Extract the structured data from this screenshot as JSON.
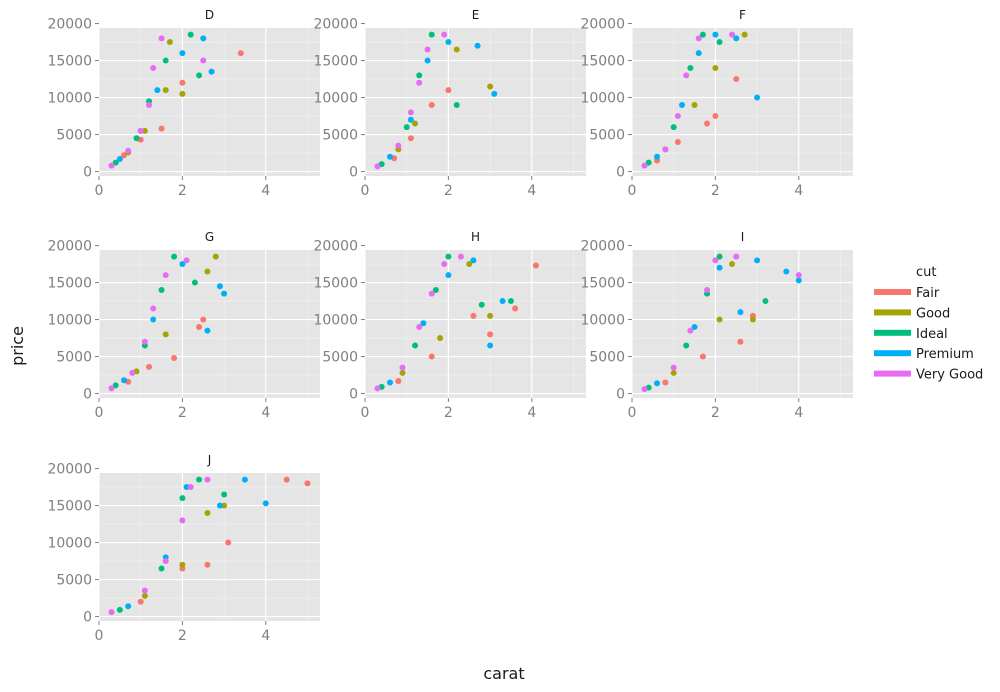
{
  "chart_data": {
    "type": "scatter",
    "title": "",
    "xlabel": "carat",
    "ylabel": "price",
    "xlim": [
      0,
      5.3
    ],
    "ylim": [
      -600,
      19400
    ],
    "xticks": [
      0,
      2,
      4
    ],
    "yticks": [
      0,
      5000,
      10000,
      15000,
      20000
    ],
    "grid": true,
    "legend": {
      "title": "cut",
      "placement": "right",
      "entries": [
        {
          "name": "Fair",
          "color": "#F8766D"
        },
        {
          "name": "Good",
          "color": "#A3A500"
        },
        {
          "name": "Ideal",
          "color": "#00BF7D"
        },
        {
          "name": "Premium",
          "color": "#00B0F6"
        },
        {
          "name": "Very Good",
          "color": "#E76BF3"
        }
      ]
    },
    "facets": [
      {
        "label": "D",
        "series": [
          {
            "name": "Fair",
            "points": [
              [
                0.6,
                2200
              ],
              [
                1.0,
                4300
              ],
              [
                1.5,
                5800
              ],
              [
                2.0,
                12000
              ],
              [
                3.4,
                16000
              ]
            ]
          },
          {
            "name": "Good",
            "points": [
              [
                0.7,
                2600
              ],
              [
                1.1,
                5500
              ],
              [
                1.6,
                11000
              ],
              [
                2.0,
                10500
              ],
              [
                1.7,
                17500
              ]
            ]
          },
          {
            "name": "Ideal",
            "points": [
              [
                0.4,
                1200
              ],
              [
                0.9,
                4500
              ],
              [
                1.2,
                9500
              ],
              [
                1.6,
                15000
              ],
              [
                2.4,
                13000
              ],
              [
                2.2,
                18500
              ]
            ]
          },
          {
            "name": "Premium",
            "points": [
              [
                0.5,
                1700
              ],
              [
                1.0,
                5500
              ],
              [
                1.4,
                11000
              ],
              [
                2.0,
                16000
              ],
              [
                2.5,
                18000
              ],
              [
                2.7,
                13500
              ]
            ]
          },
          {
            "name": "Very Good",
            "points": [
              [
                0.3,
                800
              ],
              [
                0.7,
                2800
              ],
              [
                1.0,
                5500
              ],
              [
                1.2,
                9000
              ],
              [
                1.3,
                14000
              ],
              [
                1.5,
                18000
              ],
              [
                2.5,
                15000
              ]
            ]
          }
        ]
      },
      {
        "label": "E",
        "series": [
          {
            "name": "Fair",
            "points": [
              [
                0.7,
                1800
              ],
              [
                1.1,
                4500
              ],
              [
                1.6,
                9000
              ],
              [
                2.0,
                11000
              ]
            ]
          },
          {
            "name": "Good",
            "points": [
              [
                0.8,
                3000
              ],
              [
                1.2,
                6500
              ],
              [
                3.0,
                11500
              ],
              [
                2.2,
                16500
              ]
            ]
          },
          {
            "name": "Ideal",
            "points": [
              [
                0.4,
                1000
              ],
              [
                1.0,
                6000
              ],
              [
                1.3,
                13000
              ],
              [
                1.6,
                18500
              ],
              [
                2.2,
                9000
              ]
            ]
          },
          {
            "name": "Premium",
            "points": [
              [
                0.6,
                2000
              ],
              [
                1.1,
                7000
              ],
              [
                1.5,
                15000
              ],
              [
                2.0,
                17500
              ],
              [
                2.7,
                17000
              ],
              [
                3.1,
                10500
              ]
            ]
          },
          {
            "name": "Very Good",
            "points": [
              [
                0.3,
                700
              ],
              [
                0.8,
                3500
              ],
              [
                1.1,
                8000
              ],
              [
                1.3,
                12000
              ],
              [
                1.5,
                16500
              ],
              [
                1.9,
                18500
              ]
            ]
          }
        ]
      },
      {
        "label": "F",
        "series": [
          {
            "name": "Fair",
            "points": [
              [
                0.6,
                1500
              ],
              [
                1.1,
                4000
              ],
              [
                1.8,
                6500
              ],
              [
                2.0,
                7500
              ],
              [
                2.5,
                12500
              ]
            ]
          },
          {
            "name": "Good",
            "points": [
              [
                0.8,
                3000
              ],
              [
                1.5,
                9000
              ],
              [
                2.0,
                14000
              ],
              [
                2.7,
                18500
              ]
            ]
          },
          {
            "name": "Ideal",
            "points": [
              [
                0.4,
                1200
              ],
              [
                1.0,
                6000
              ],
              [
                1.4,
                14000
              ],
              [
                1.7,
                18500
              ],
              [
                2.1,
                17500
              ]
            ]
          },
          {
            "name": "Premium",
            "points": [
              [
                0.6,
                2000
              ],
              [
                1.2,
                9000
              ],
              [
                1.6,
                16000
              ],
              [
                2.0,
                18500
              ],
              [
                3.0,
                10000
              ],
              [
                2.5,
                18000
              ]
            ]
          },
          {
            "name": "Very Good",
            "points": [
              [
                0.3,
                800
              ],
              [
                0.8,
                3000
              ],
              [
                1.1,
                7500
              ],
              [
                1.3,
                13000
              ],
              [
                1.6,
                18000
              ],
              [
                2.4,
                18500
              ]
            ]
          }
        ]
      },
      {
        "label": "G",
        "series": [
          {
            "name": "Fair",
            "points": [
              [
                0.7,
                1600
              ],
              [
                1.2,
                3600
              ],
              [
                1.8,
                4800
              ],
              [
                2.4,
                9000
              ],
              [
                2.5,
                10000
              ]
            ]
          },
          {
            "name": "Good",
            "points": [
              [
                0.9,
                3000
              ],
              [
                1.6,
                8000
              ],
              [
                2.6,
                16500
              ],
              [
                2.8,
                18500
              ]
            ]
          },
          {
            "name": "Ideal",
            "points": [
              [
                0.4,
                1100
              ],
              [
                1.1,
                6500
              ],
              [
                1.5,
                14000
              ],
              [
                1.8,
                18500
              ],
              [
                2.3,
                15000
              ]
            ]
          },
          {
            "name": "Premium",
            "points": [
              [
                0.6,
                1800
              ],
              [
                1.3,
                10000
              ],
              [
                2.0,
                17500
              ],
              [
                2.6,
                8500
              ],
              [
                3.0,
                13500
              ],
              [
                2.9,
                14500
              ]
            ]
          },
          {
            "name": "Very Good",
            "points": [
              [
                0.3,
                700
              ],
              [
                0.8,
                2800
              ],
              [
                1.1,
                7000
              ],
              [
                1.3,
                11500
              ],
              [
                1.6,
                16000
              ],
              [
                2.1,
                18000
              ]
            ]
          }
        ]
      },
      {
        "label": "H",
        "series": [
          {
            "name": "Fair",
            "points": [
              [
                0.8,
                1700
              ],
              [
                1.6,
                5000
              ],
              [
                2.6,
                10500
              ],
              [
                3.0,
                8000
              ],
              [
                3.6,
                11500
              ],
              [
                4.1,
                17300
              ]
            ]
          },
          {
            "name": "Good",
            "points": [
              [
                0.9,
                2800
              ],
              [
                1.8,
                7500
              ],
              [
                2.5,
                17500
              ],
              [
                3.0,
                10500
              ]
            ]
          },
          {
            "name": "Ideal",
            "points": [
              [
                0.4,
                900
              ],
              [
                1.2,
                6500
              ],
              [
                1.7,
                14000
              ],
              [
                2.0,
                18500
              ],
              [
                3.5,
                12500
              ],
              [
                2.8,
                12000
              ]
            ]
          },
          {
            "name": "Premium",
            "points": [
              [
                0.6,
                1500
              ],
              [
                1.4,
                9500
              ],
              [
                2.0,
                16000
              ],
              [
                2.6,
                18000
              ],
              [
                3.3,
                12500
              ],
              [
                3.0,
                6500
              ]
            ]
          },
          {
            "name": "Very Good",
            "points": [
              [
                0.3,
                700
              ],
              [
                0.9,
                3500
              ],
              [
                1.3,
                9000
              ],
              [
                1.6,
                13500
              ],
              [
                1.9,
                17500
              ],
              [
                2.3,
                18500
              ]
            ]
          }
        ]
      },
      {
        "label": "I",
        "series": [
          {
            "name": "Fair",
            "points": [
              [
                0.8,
                1500
              ],
              [
                1.7,
                5000
              ],
              [
                2.6,
                7000
              ],
              [
                2.9,
                10500
              ]
            ]
          },
          {
            "name": "Good",
            "points": [
              [
                1.0,
                2800
              ],
              [
                2.1,
                10000
              ],
              [
                2.4,
                17500
              ],
              [
                2.9,
                10000
              ]
            ]
          },
          {
            "name": "Ideal",
            "points": [
              [
                0.4,
                800
              ],
              [
                1.3,
                6500
              ],
              [
                1.8,
                13500
              ],
              [
                2.1,
                18500
              ],
              [
                3.2,
                12500
              ]
            ]
          },
          {
            "name": "Premium",
            "points": [
              [
                0.6,
                1400
              ],
              [
                1.5,
                9000
              ],
              [
                2.1,
                17000
              ],
              [
                2.6,
                11000
              ],
              [
                3.0,
                18000
              ],
              [
                3.7,
                16500
              ],
              [
                4.0,
                15300
              ]
            ]
          },
          {
            "name": "Very Good",
            "points": [
              [
                0.3,
                600
              ],
              [
                1.0,
                3500
              ],
              [
                1.4,
                8500
              ],
              [
                1.8,
                14000
              ],
              [
                2.0,
                18000
              ],
              [
                2.5,
                18500
              ],
              [
                4.0,
                16000
              ]
            ]
          }
        ]
      },
      {
        "label": "J",
        "series": [
          {
            "name": "Fair",
            "points": [
              [
                1.0,
                2000
              ],
              [
                2.0,
                6500
              ],
              [
                2.6,
                7000
              ],
              [
                3.1,
                10000
              ],
              [
                4.5,
                18500
              ],
              [
                5.0,
                18000
              ]
            ]
          },
          {
            "name": "Good",
            "points": [
              [
                1.1,
                2800
              ],
              [
                2.0,
                7000
              ],
              [
                2.6,
                14000
              ],
              [
                3.0,
                15000
              ]
            ]
          },
          {
            "name": "Ideal",
            "points": [
              [
                0.5,
                900
              ],
              [
                1.5,
                6500
              ],
              [
                2.0,
                16000
              ],
              [
                2.4,
                18500
              ],
              [
                3.0,
                16500
              ]
            ]
          },
          {
            "name": "Premium",
            "points": [
              [
                0.7,
                1400
              ],
              [
                1.6,
                8000
              ],
              [
                2.1,
                17500
              ],
              [
                2.9,
                15000
              ],
              [
                3.5,
                18500
              ],
              [
                4.0,
                15300
              ]
            ]
          },
          {
            "name": "Very Good",
            "points": [
              [
                0.3,
                600
              ],
              [
                1.1,
                3500
              ],
              [
                1.6,
                7500
              ],
              [
                2.0,
                13000
              ],
              [
                2.2,
                17500
              ],
              [
                2.6,
                18500
              ]
            ]
          }
        ]
      }
    ]
  }
}
